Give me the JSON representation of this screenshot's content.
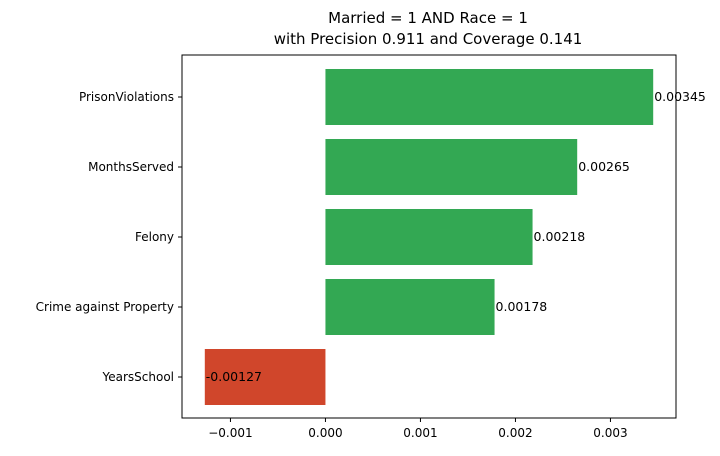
{
  "chart_data": {
    "type": "bar",
    "orientation": "horizontal",
    "title": [
      "Married = 1 AND Race = 1",
      "with Precision 0.911 and Coverage 0.141"
    ],
    "xlabel": "",
    "ylabel": "",
    "categories": [
      "PrisonViolations",
      "MonthsServed",
      "Felony",
      "Crime against Property",
      "YearsSchool"
    ],
    "values": [
      0.00345,
      0.00265,
      0.00218,
      0.00178,
      -0.00127
    ],
    "value_labels": [
      "0.00345",
      "0.00265",
      "0.00218",
      "0.00178",
      "-0.00127"
    ],
    "xlim": [
      -0.00151,
      0.00369
    ],
    "xticks": [
      -0.001,
      0.0,
      0.001,
      0.002,
      0.003
    ],
    "xtick_labels": [
      "−0.001",
      "0.000",
      "0.001",
      "0.002",
      "0.003"
    ],
    "grid": false,
    "colors": {
      "positive": "#33a853",
      "negative": "#d0462b"
    }
  }
}
